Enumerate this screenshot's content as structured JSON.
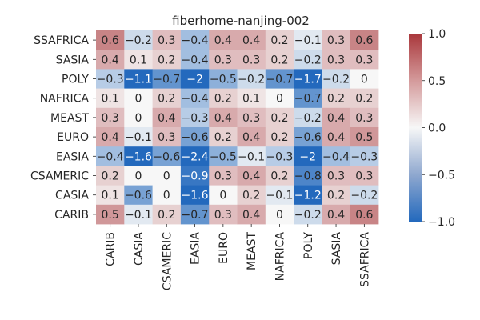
{
  "chart_data": {
    "type": "heatmap",
    "title": "fiberhome-nanjing-002",
    "xlabel": "",
    "ylabel": "",
    "x_categories": [
      "CARIB",
      "CASIA",
      "CSAMERIC",
      "EASIA",
      "EURO",
      "MEAST",
      "NAFRICA",
      "POLY",
      "SASIA",
      "SSAFRICA"
    ],
    "y_categories": [
      "SSAFRICA",
      "SASIA",
      "POLY",
      "NAFRICA",
      "MEAST",
      "EURO",
      "EASIA",
      "CSAMERIC",
      "CASIA",
      "CARIB"
    ],
    "values": [
      [
        0.6,
        -0.2,
        0.3,
        -0.4,
        0.4,
        0.4,
        0.2,
        -0.1,
        0.3,
        0.6
      ],
      [
        0.4,
        0.1,
        0.2,
        -0.4,
        0.3,
        0.3,
        0.2,
        -0.2,
        0.3,
        0.3
      ],
      [
        -0.3,
        -1.1,
        -0.7,
        -2,
        -0.5,
        -0.2,
        -0.7,
        -1.7,
        -0.2,
        0
      ],
      [
        0.1,
        0,
        0.2,
        -0.4,
        0.2,
        0.1,
        0,
        -0.7,
        0.2,
        0.2
      ],
      [
        0.3,
        0,
        0.4,
        -0.3,
        0.4,
        0.3,
        0.2,
        -0.2,
        0.4,
        0.3
      ],
      [
        0.4,
        -0.1,
        0.3,
        -0.6,
        0.2,
        0.4,
        0.2,
        -0.6,
        0.4,
        0.5
      ],
      [
        -0.4,
        -1.6,
        -0.6,
        -2.4,
        -0.5,
        -0.1,
        -0.3,
        -2,
        -0.4,
        -0.3
      ],
      [
        0.2,
        0,
        0,
        -0.9,
        0.3,
        0.4,
        0.2,
        -0.8,
        0.3,
        0.3
      ],
      [
        0.1,
        -0.6,
        0,
        -1.6,
        0,
        0.2,
        -0.1,
        -1.2,
        0.2,
        -0.2
      ],
      [
        0.5,
        -0.1,
        0.2,
        -0.7,
        0.3,
        0.4,
        0,
        -0.2,
        0.4,
        0.6
      ]
    ],
    "colormap": "vlag",
    "vmin": -1.0,
    "vmax": 1.0,
    "colorbar_ticks": [
      1.0,
      0.5,
      0.0,
      -0.5,
      -1.0
    ],
    "colorbar_tick_labels": [
      "1.0",
      "0.5",
      "0.0",
      "−0.5",
      "−1.0"
    ],
    "colors": {
      "low": "#2369bd",
      "mid": "#f7f7f7",
      "high": "#a9373b"
    },
    "grid": false,
    "legend": "colorbar-right"
  }
}
